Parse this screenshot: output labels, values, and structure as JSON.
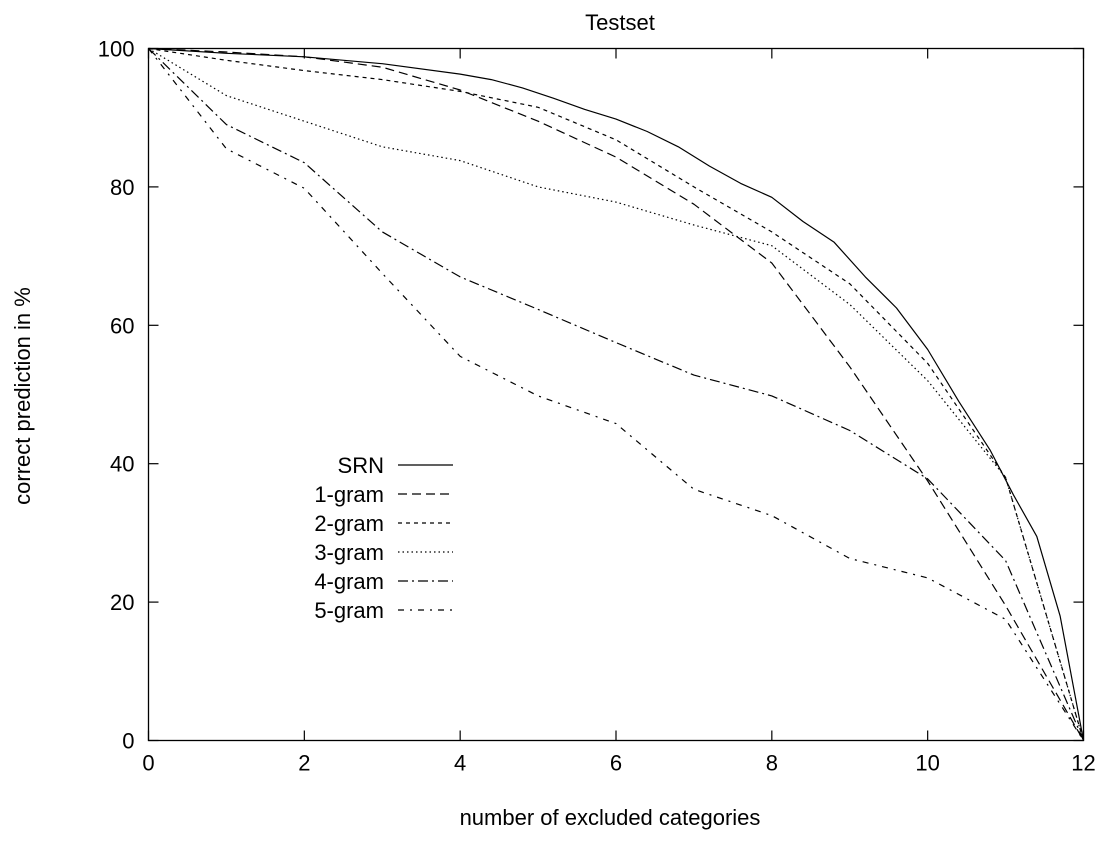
{
  "chart_data": {
    "type": "line",
    "title": "Testset",
    "xlabel": "number of excluded categories",
    "ylabel": "correct prediction in %",
    "xlim": [
      0,
      12
    ],
    "ylim": [
      0,
      100
    ],
    "xticks": [
      0,
      2,
      4,
      6,
      8,
      10,
      12
    ],
    "yticks": [
      0,
      20,
      40,
      60,
      80,
      100
    ],
    "grid": false,
    "legend_position": "center-left",
    "series": [
      {
        "name": "SRN",
        "dash": "solid",
        "points": [
          [
            0,
            100
          ],
          [
            1,
            99.3
          ],
          [
            2,
            98.8
          ],
          [
            3,
            97.8
          ],
          [
            4,
            96.3
          ],
          [
            4.4,
            95.5
          ],
          [
            4.8,
            94.3
          ],
          [
            5.2,
            92.8
          ],
          [
            5.6,
            91.2
          ],
          [
            6,
            89.8
          ],
          [
            6.4,
            88
          ],
          [
            6.8,
            85.8
          ],
          [
            7.2,
            83
          ],
          [
            7.6,
            80.5
          ],
          [
            8,
            78.5
          ],
          [
            8.4,
            75
          ],
          [
            8.8,
            72
          ],
          [
            9.2,
            67
          ],
          [
            9.6,
            62.5
          ],
          [
            10,
            56.5
          ],
          [
            10.4,
            49
          ],
          [
            10.8,
            42
          ],
          [
            11.1,
            35.5
          ],
          [
            11.4,
            29.5
          ],
          [
            11.7,
            18
          ],
          [
            12,
            0
          ]
        ]
      },
      {
        "name": "1-gram",
        "dash": "long-dash",
        "points": [
          [
            0,
            100
          ],
          [
            1,
            99.5
          ],
          [
            2,
            98.8
          ],
          [
            3,
            97.3
          ],
          [
            4,
            94
          ],
          [
            5,
            89.5
          ],
          [
            6,
            84.3
          ],
          [
            7,
            77.5
          ],
          [
            8,
            69
          ],
          [
            9,
            54
          ],
          [
            10,
            37.5
          ],
          [
            11,
            19.5
          ],
          [
            12,
            0
          ]
        ]
      },
      {
        "name": "2-gram",
        "dash": "short-dash",
        "points": [
          [
            0,
            100
          ],
          [
            1,
            98.3
          ],
          [
            2,
            96.8
          ],
          [
            3,
            95.5
          ],
          [
            4,
            93.8
          ],
          [
            5,
            91.5
          ],
          [
            6,
            86.8
          ],
          [
            7,
            80
          ],
          [
            8,
            73.5
          ],
          [
            9,
            66
          ],
          [
            10,
            54.5
          ],
          [
            11,
            38
          ],
          [
            12,
            0
          ]
        ]
      },
      {
        "name": "3-gram",
        "dash": "dotted",
        "points": [
          [
            0,
            100
          ],
          [
            1,
            93.2
          ],
          [
            2,
            89.5
          ],
          [
            3,
            85.8
          ],
          [
            4,
            83.8
          ],
          [
            5,
            80
          ],
          [
            6,
            77.8
          ],
          [
            7,
            74.5
          ],
          [
            8,
            71.5
          ],
          [
            9,
            63
          ],
          [
            10,
            52
          ],
          [
            11,
            38
          ],
          [
            12,
            0
          ]
        ]
      },
      {
        "name": "4-gram",
        "dash": "dash-dot",
        "points": [
          [
            0,
            100
          ],
          [
            1,
            89
          ],
          [
            2,
            83.5
          ],
          [
            3,
            73.5
          ],
          [
            4,
            67
          ],
          [
            5,
            62.3
          ],
          [
            6,
            57.5
          ],
          [
            7,
            52.8
          ],
          [
            8,
            49.8
          ],
          [
            9,
            44.8
          ],
          [
            10,
            37.8
          ],
          [
            11,
            26
          ],
          [
            12,
            0
          ]
        ]
      },
      {
        "name": "5-gram",
        "dash": "dash-dot-sparse",
        "points": [
          [
            0,
            100
          ],
          [
            1,
            85.5
          ],
          [
            2,
            79.8
          ],
          [
            3,
            67.5
          ],
          [
            4,
            55.5
          ],
          [
            5,
            49.8
          ],
          [
            6,
            45.8
          ],
          [
            7,
            36.3
          ],
          [
            8,
            32.5
          ],
          [
            9,
            26.3
          ],
          [
            10,
            23.5
          ],
          [
            11,
            17.5
          ],
          [
            12,
            0
          ]
        ]
      }
    ]
  }
}
